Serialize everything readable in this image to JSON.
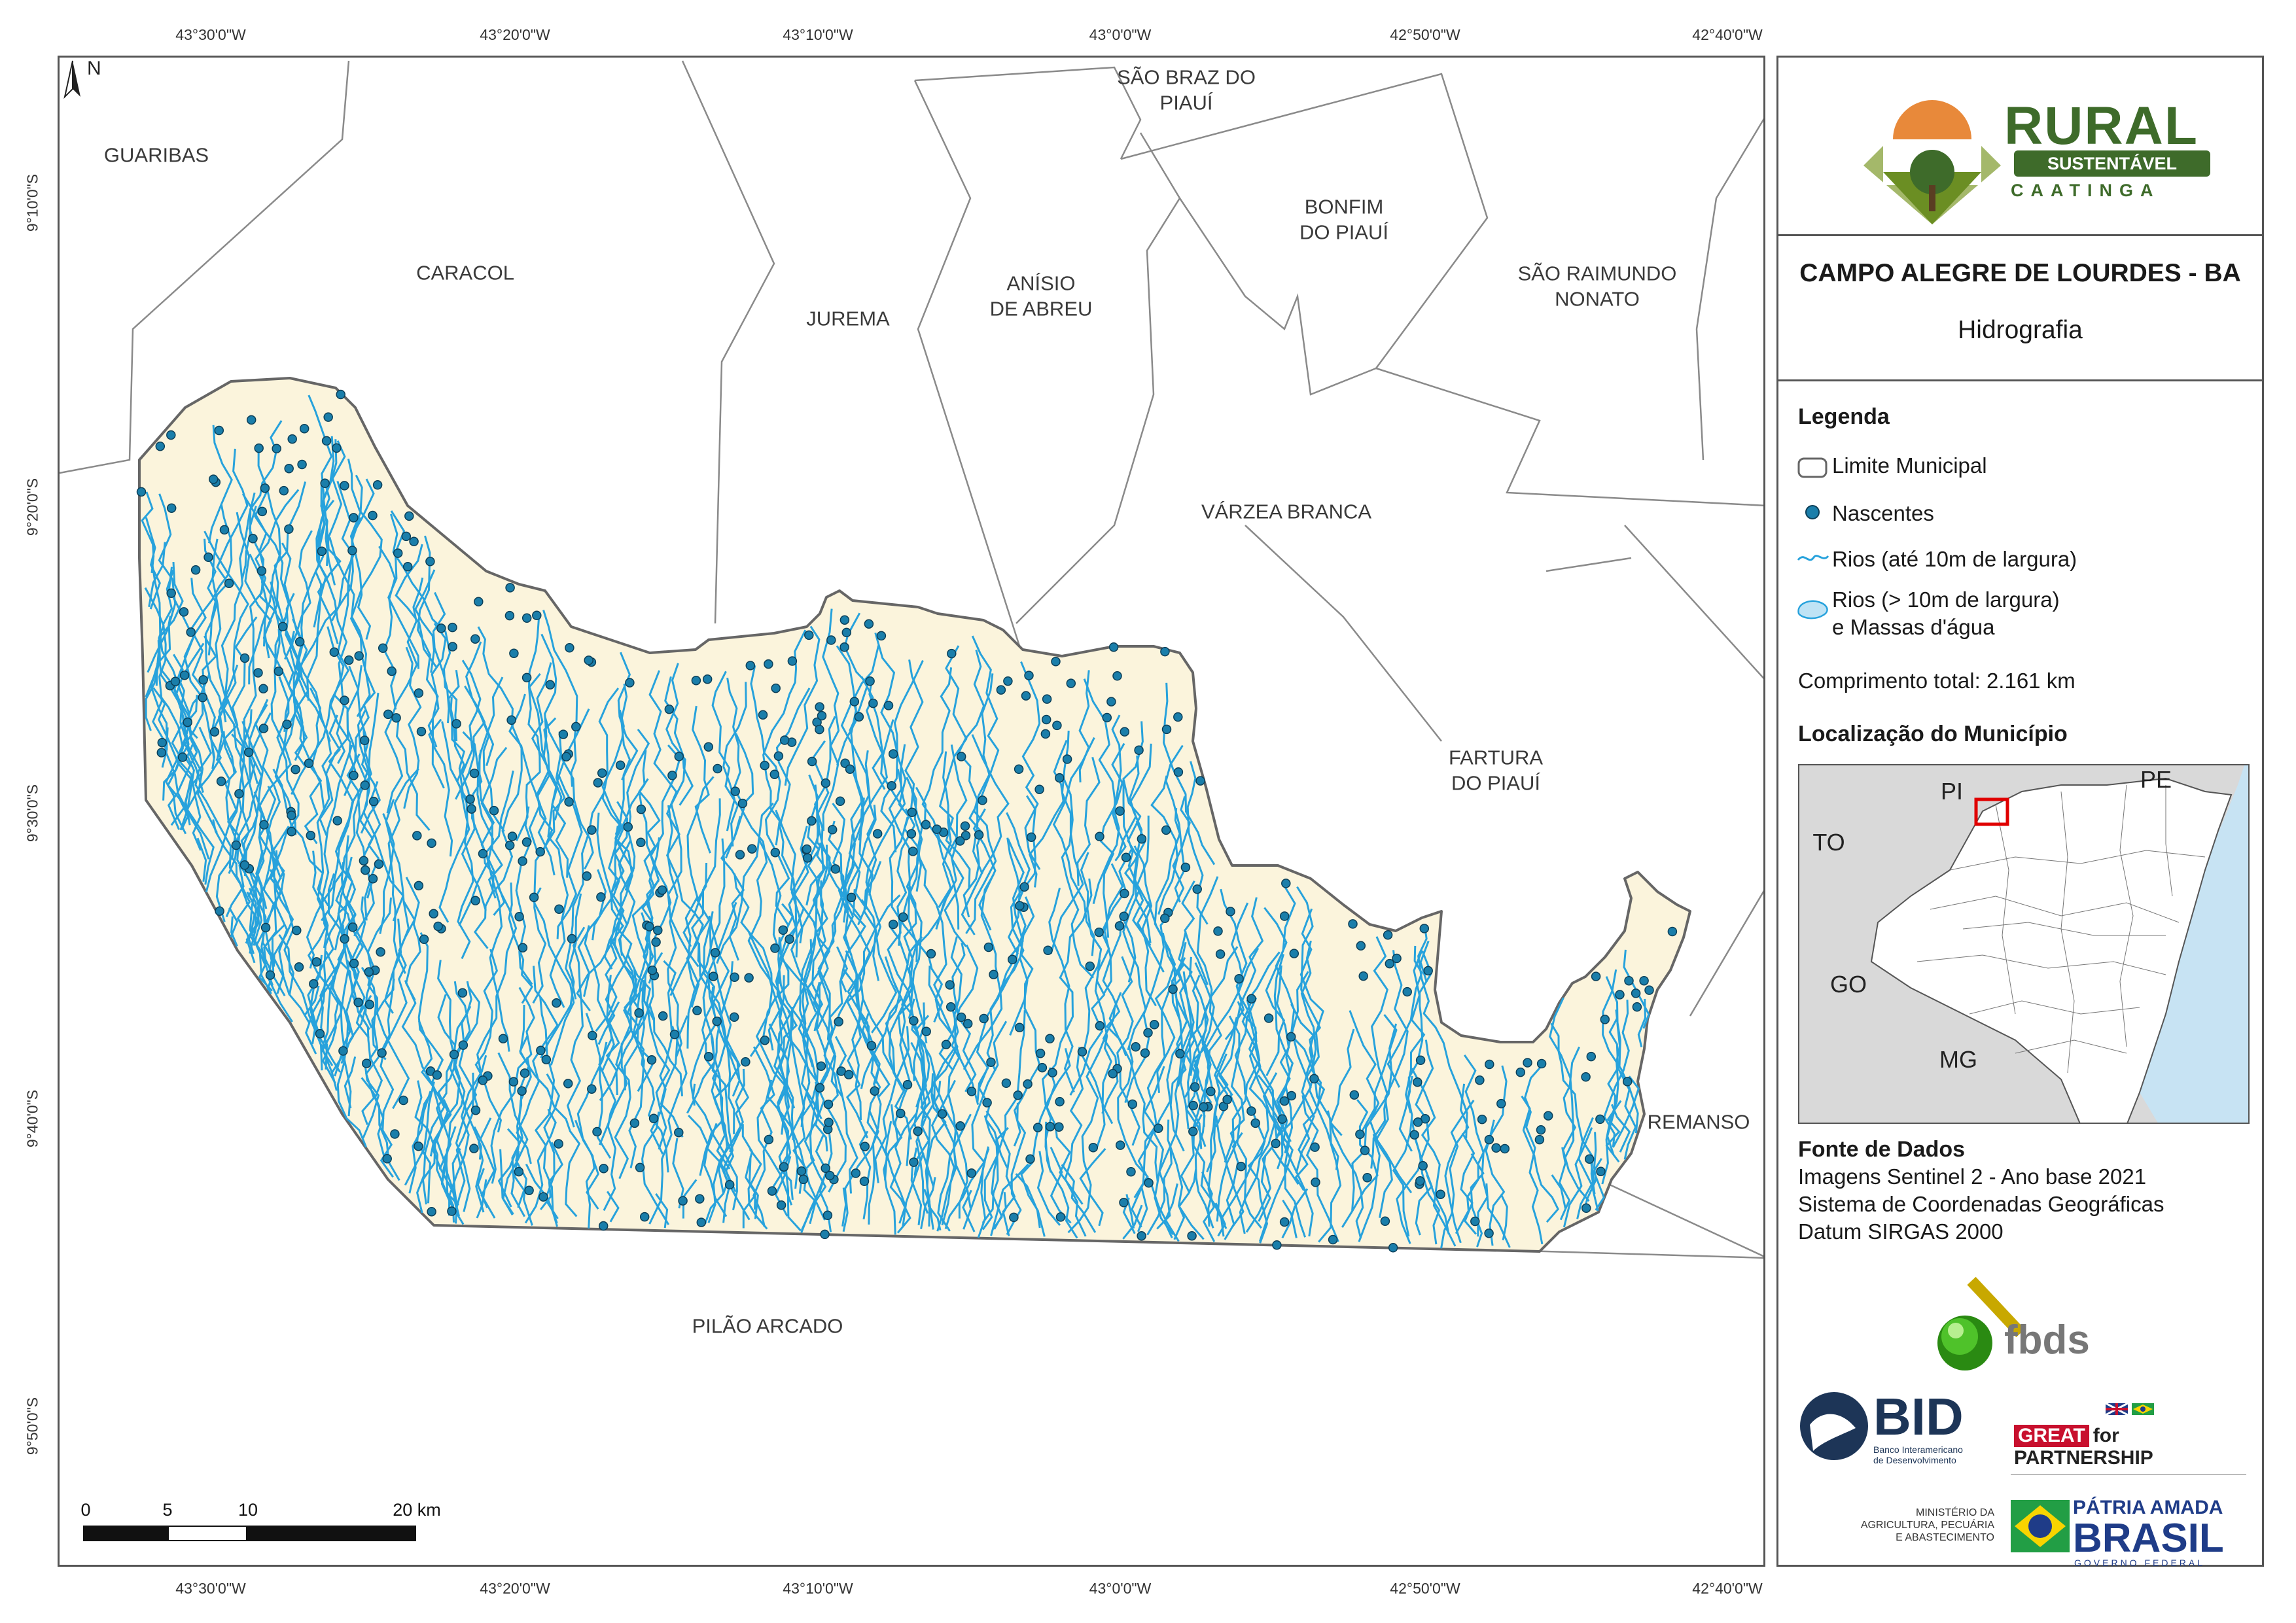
{
  "map": {
    "coords_top": [
      "43°30'0\"W",
      "43°20'0\"W",
      "43°10'0\"W",
      "43°0'0\"W",
      "42°50'0\"W",
      "42°40'0\"W"
    ],
    "coords_bottom": [
      "43°30'0\"W",
      "43°20'0\"W",
      "43°10'0\"W",
      "43°0'0\"W",
      "42°50'0\"W",
      "42°40'0\"W"
    ],
    "coords_left": [
      "9°10'0\"S",
      "9°20'0\"S",
      "9°30'0\"S",
      "9°40'0\"S",
      "9°50'0\"S"
    ],
    "north_label": "N",
    "municipalities": [
      "GUARIBAS",
      "CARACOL",
      "JUREMA",
      "ANÍSIO\nDE ABREU",
      "SÃO BRAZ DO\nPIAUÍ",
      "BONFIM\nDO PIAUÍ",
      "SÃO RAIMUNDO\nNONATO",
      "VÁRZEA BRANCA",
      "FARTURA\nDO PIAUÍ",
      "REMANSO",
      "PILÃO ARCADO"
    ],
    "scale_labels": [
      "0",
      "5",
      "10",
      "20 km"
    ],
    "colors": {
      "municipality_fill": "#fbf4dc",
      "rivers": "#27a2dc",
      "springs": "#1a7eaa",
      "border": "#666666"
    }
  },
  "panel": {
    "logo": {
      "word": "RURAL",
      "bar": "SUSTENTÁVEL",
      "sub": "CAATINGA"
    },
    "title": "CAMPO ALEGRE DE LOURDES - BA",
    "subtitle": "Hidrografia",
    "legend_title": "Legenda",
    "legend": {
      "limit": "Limite Municipal",
      "springs": "Nascentes",
      "rivers_small": "Rios (até 10m de largura)",
      "rivers_large_1": "Rios (> 10m de largura)",
      "rivers_large_2": "e Massas d'água"
    },
    "length_label": "Comprimento total:  2.161 km",
    "location_title": "Localização do Município",
    "location_states": [
      "PI",
      "PE",
      "TO",
      "GO",
      "MG"
    ],
    "source_title": "Fonte de Dados",
    "source_lines": [
      "Imagens Sentinel 2 - Ano base 2021",
      "Sistema de Coordenadas Geográficas",
      "Datum SIRGAS 2000"
    ],
    "fbds": "fbds",
    "bid": "BID",
    "bid_sub": "Banco Interamericano\nde Desenvolvimento",
    "great_a": "GREAT",
    "great_b": "for PARTNERSHIP",
    "ministry": "MINISTÉRIO DA\nAGRICULTURA, PECUÁRIA\nE ABASTECIMENTO",
    "patria_a": "PÁTRIA AMADA",
    "patria_b": "BRASIL",
    "patria_c": "GOVERNO FEDERAL"
  }
}
